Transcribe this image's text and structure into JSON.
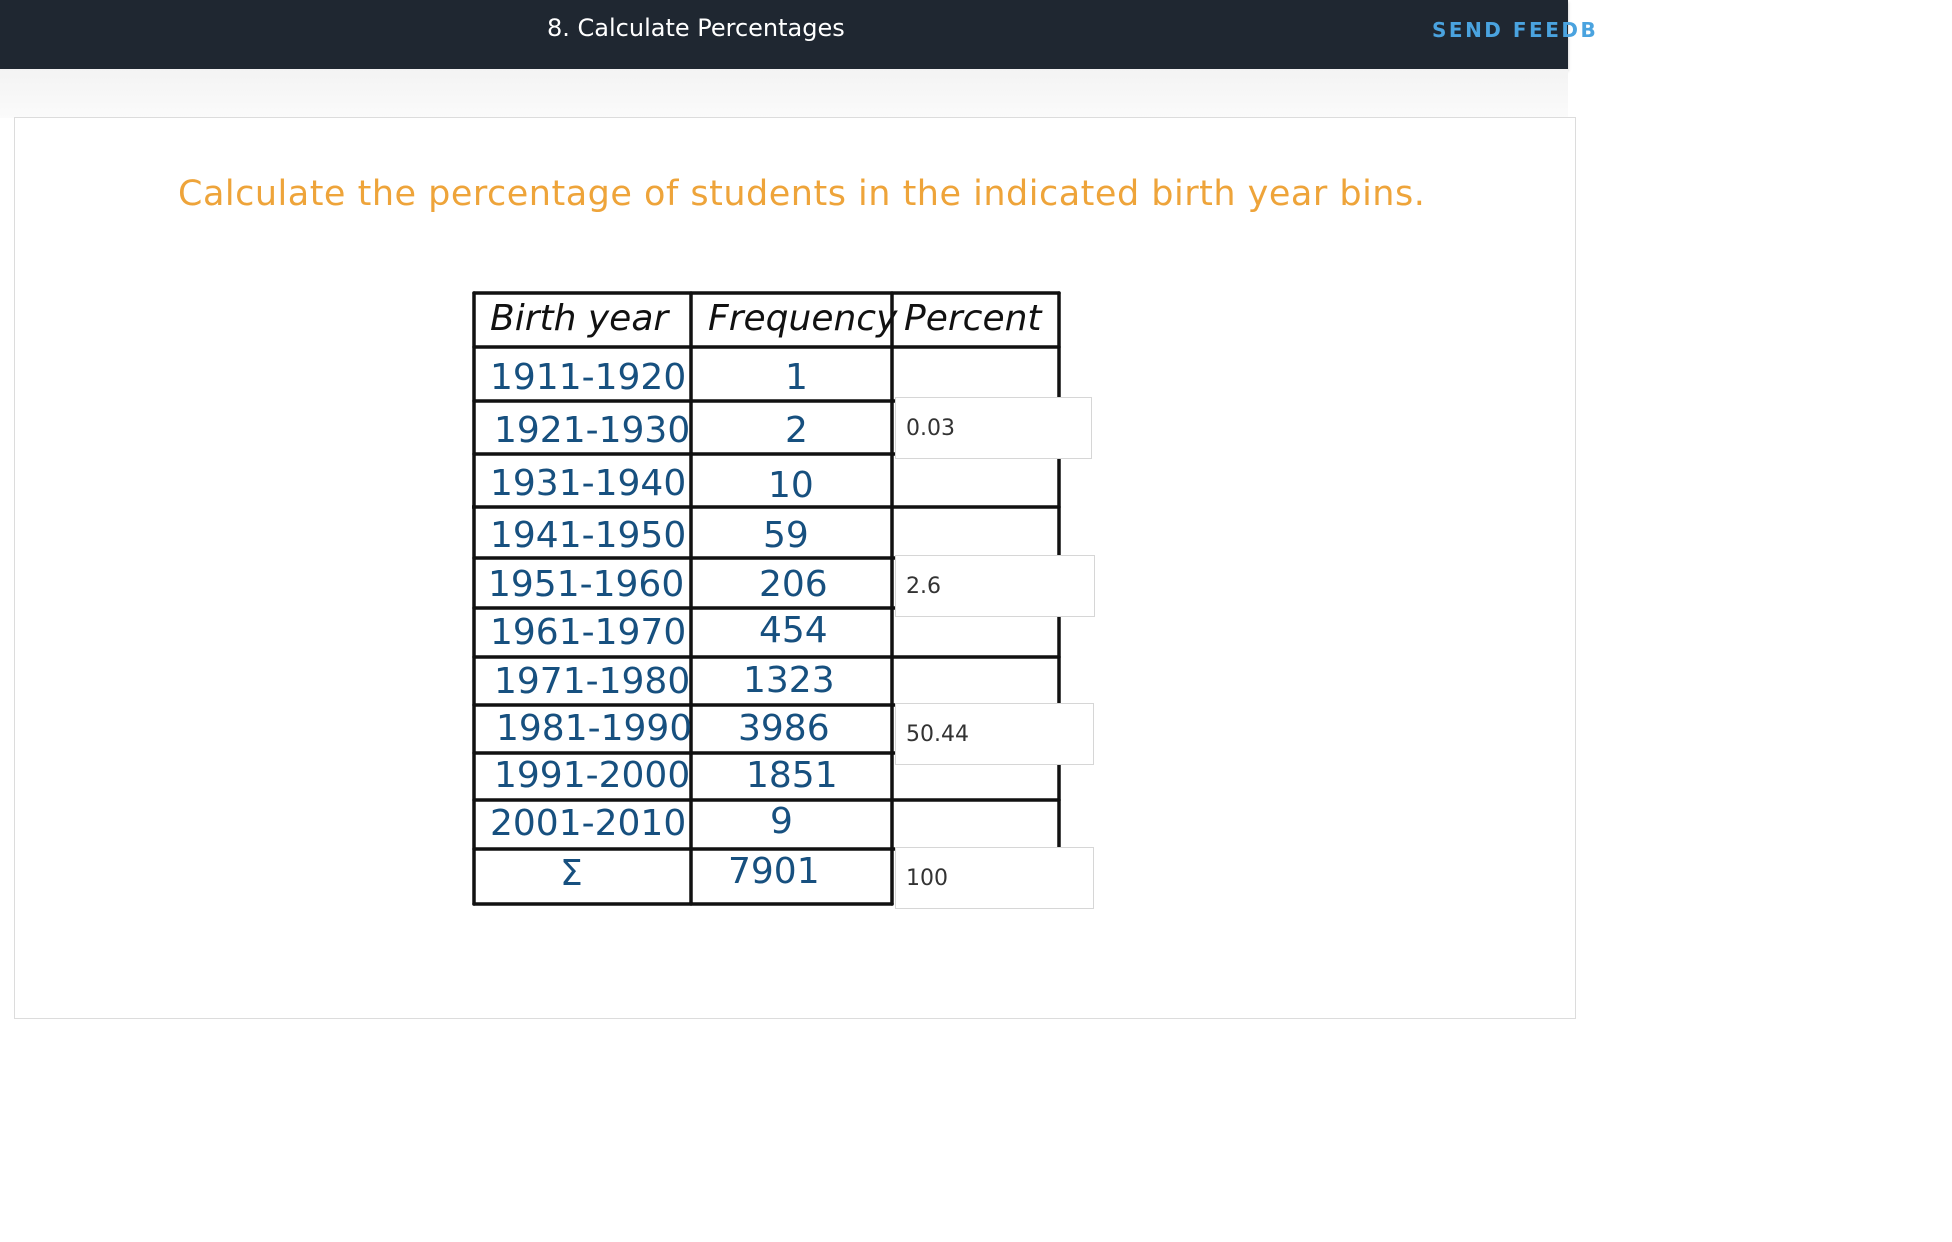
{
  "header": {
    "title": "8. Calculate Percentages",
    "feedback_label": "SEND FEEDB"
  },
  "instruction": "Calculate the percentage of students in the indicated birth year bins.",
  "table": {
    "headers": [
      "Birth year",
      "Frequency",
      "Percent"
    ],
    "rows": [
      {
        "year": "1911-1920",
        "frequency": "1"
      },
      {
        "year": "1921-1930",
        "frequency": "2"
      },
      {
        "year": "1931-1940",
        "frequency": "10"
      },
      {
        "year": "1941-1950",
        "frequency": "59"
      },
      {
        "year": "1951-1960",
        "frequency": "206"
      },
      {
        "year": "1961-1970",
        "frequency": "454"
      },
      {
        "year": "1971-1980",
        "frequency": "1323"
      },
      {
        "year": "1981-1990",
        "frequency": "3986"
      },
      {
        "year": "1991-2000",
        "frequency": "1851"
      },
      {
        "year": "2001-2010",
        "frequency": "9"
      }
    ],
    "total": {
      "symbol": "Σ",
      "frequency": "7901"
    }
  },
  "answers": {
    "a1921": "0.03",
    "a1951": "2.6",
    "a1981": "50.44",
    "total": "100"
  }
}
